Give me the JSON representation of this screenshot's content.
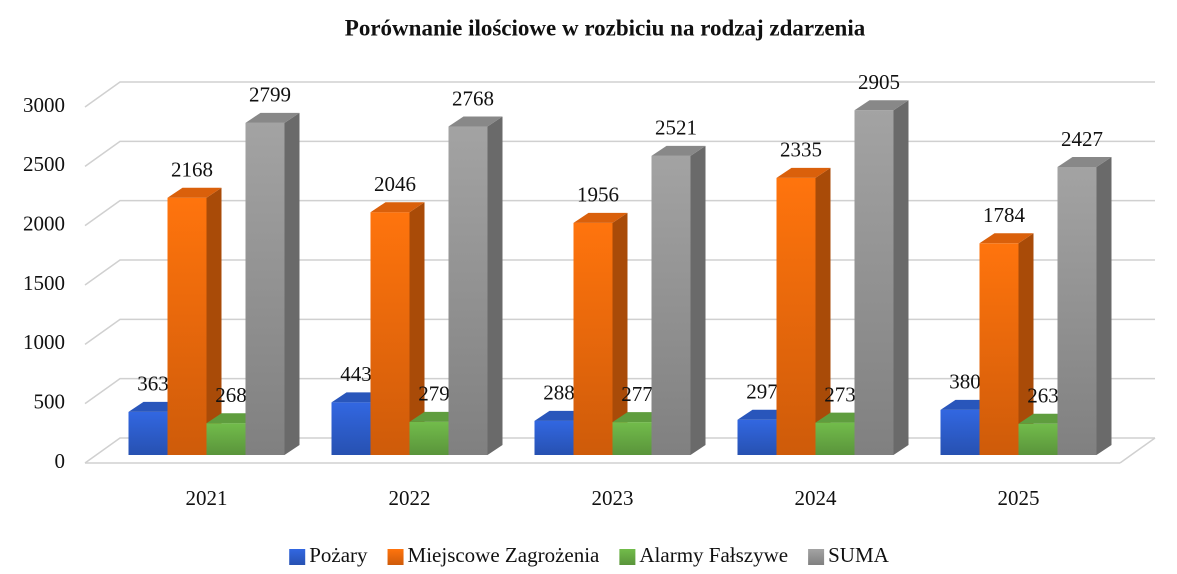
{
  "chart_data": {
    "type": "bar3d",
    "title": "Porównanie ilościowe w rozbiciu na rodzaj zdarzenia",
    "categories": [
      "2021",
      "2022",
      "2023",
      "2024",
      "2025"
    ],
    "series": [
      {
        "name": "Pożary",
        "color": "#2e5fd0",
        "values": [
          363,
          443,
          288,
          297,
          380
        ]
      },
      {
        "name": "Miejscowe Zagrożenia",
        "color": "#f26b0c",
        "values": [
          2168,
          2046,
          1956,
          2335,
          1784
        ]
      },
      {
        "name": "Alarmy Fałszywe",
        "color": "#6aae45",
        "values": [
          268,
          279,
          277,
          273,
          263
        ]
      },
      {
        "name": "SUMA",
        "color": "#979797",
        "values": [
          2799,
          2768,
          2521,
          2905,
          2427
        ]
      }
    ],
    "ylim": [
      0,
      3000
    ],
    "yticks": [
      0,
      500,
      1000,
      1500,
      2000,
      2500,
      3000
    ],
    "grid": true,
    "legend": "bottom"
  }
}
